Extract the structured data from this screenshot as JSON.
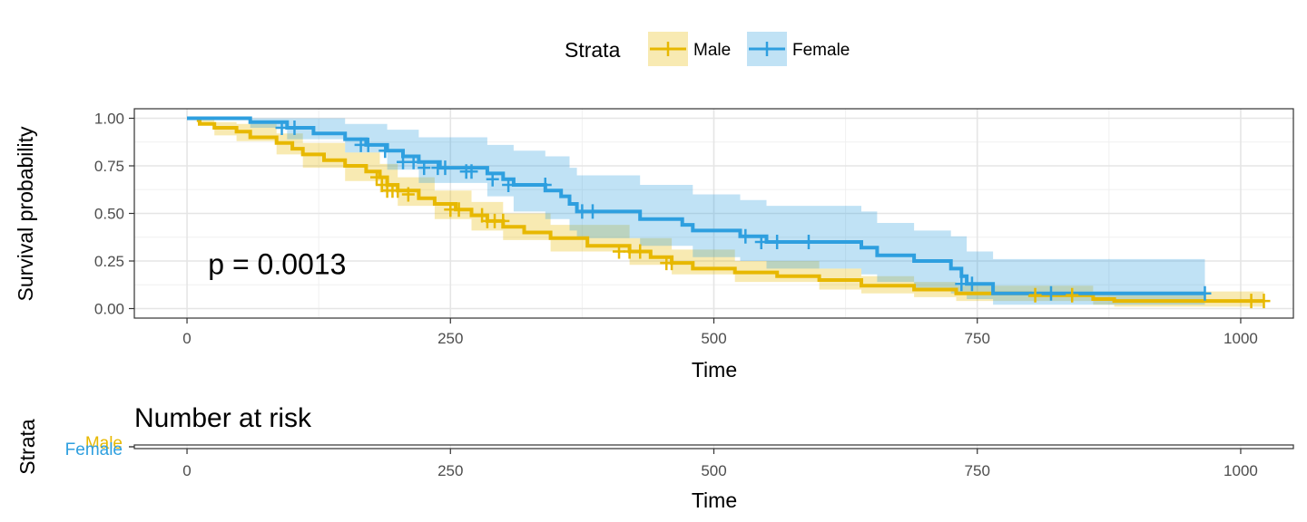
{
  "chart_data": [
    {
      "type": "line",
      "subtype": "kaplan-meier step curve with confidence bands and censor marks",
      "xlabel": "Time",
      "ylabel": "Survival probability",
      "xlim": [
        -50,
        1050
      ],
      "ylim": [
        -0.05,
        1.05
      ],
      "x_ticks": [
        0,
        250,
        500,
        750,
        1000
      ],
      "x_tick_labels": [
        "0",
        "250",
        "500",
        "750",
        "1000"
      ],
      "y_ticks": [
        0,
        0.25,
        0.5,
        0.75,
        1.0
      ],
      "y_tick_labels": [
        "0.00",
        "0.25",
        "0.50",
        "0.75",
        "1.00"
      ],
      "grid": true,
      "legend": {
        "title": "Strata",
        "position": "top",
        "entries": [
          "Male",
          "Female"
        ]
      },
      "annotation": {
        "text": "p = 0.0013",
        "x": 20,
        "y": 0.18
      },
      "series": [
        {
          "name": "Male",
          "color": "#E7B800",
          "steps": [
            [
              0,
              1.0
            ],
            [
              11,
              0.99
            ],
            [
              12,
              0.97
            ],
            [
              26,
              0.95
            ],
            [
              47,
              0.93
            ],
            [
              60,
              0.9
            ],
            [
              85,
              0.87
            ],
            [
              100,
              0.84
            ],
            [
              110,
              0.81
            ],
            [
              130,
              0.78
            ],
            [
              150,
              0.75
            ],
            [
              170,
              0.72
            ],
            [
              183,
              0.69
            ],
            [
              190,
              0.65
            ],
            [
              200,
              0.62
            ],
            [
              220,
              0.58
            ],
            [
              235,
              0.55
            ],
            [
              255,
              0.52
            ],
            [
              270,
              0.49
            ],
            [
              285,
              0.46
            ],
            [
              300,
              0.43
            ],
            [
              320,
              0.4
            ],
            [
              345,
              0.37
            ],
            [
              380,
              0.33
            ],
            [
              420,
              0.3
            ],
            [
              440,
              0.27
            ],
            [
              460,
              0.24
            ],
            [
              480,
              0.21
            ],
            [
              520,
              0.19
            ],
            [
              560,
              0.17
            ],
            [
              600,
              0.15
            ],
            [
              640,
              0.12
            ],
            [
              690,
              0.1
            ],
            [
              730,
              0.08
            ],
            [
              800,
              0.07
            ],
            [
              860,
              0.05
            ],
            [
              880,
              0.04
            ],
            [
              1022,
              0.04
            ]
          ],
          "ci_lower": [
            [
              0,
              1.0
            ],
            [
              11,
              0.97
            ],
            [
              26,
              0.91
            ],
            [
              47,
              0.88
            ],
            [
              85,
              0.81
            ],
            [
              110,
              0.74
            ],
            [
              150,
              0.67
            ],
            [
              183,
              0.61
            ],
            [
              200,
              0.54
            ],
            [
              235,
              0.47
            ],
            [
              270,
              0.41
            ],
            [
              300,
              0.36
            ],
            [
              345,
              0.3
            ],
            [
              420,
              0.23
            ],
            [
              460,
              0.18
            ],
            [
              520,
              0.14
            ],
            [
              600,
              0.1
            ],
            [
              640,
              0.08
            ],
            [
              690,
              0.06
            ],
            [
              730,
              0.04
            ],
            [
              860,
              0.02
            ],
            [
              880,
              0.01
            ],
            [
              1022,
              0.01
            ]
          ],
          "ci_upper": [
            [
              0,
              1.0
            ],
            [
              11,
              1.0
            ],
            [
              26,
              0.98
            ],
            [
              47,
              0.97
            ],
            [
              85,
              0.92
            ],
            [
              110,
              0.87
            ],
            [
              150,
              0.82
            ],
            [
              183,
              0.76
            ],
            [
              200,
              0.69
            ],
            [
              235,
              0.62
            ],
            [
              270,
              0.56
            ],
            [
              300,
              0.5
            ],
            [
              345,
              0.44
            ],
            [
              420,
              0.37
            ],
            [
              460,
              0.31
            ],
            [
              520,
              0.25
            ],
            [
              600,
              0.21
            ],
            [
              640,
              0.17
            ],
            [
              690,
              0.14
            ],
            [
              730,
              0.12
            ],
            [
              860,
              0.09
            ],
            [
              880,
              0.09
            ],
            [
              1022,
              0.09
            ]
          ],
          "censored": [
            [
              180,
              0.69
            ],
            [
              185,
              0.65
            ],
            [
              190,
              0.62
            ],
            [
              195,
              0.62
            ],
            [
              200,
              0.62
            ],
            [
              210,
              0.6
            ],
            [
              250,
              0.52
            ],
            [
              258,
              0.52
            ],
            [
              280,
              0.49
            ],
            [
              285,
              0.46
            ],
            [
              292,
              0.46
            ],
            [
              300,
              0.46
            ],
            [
              410,
              0.3
            ],
            [
              420,
              0.3
            ],
            [
              430,
              0.3
            ],
            [
              455,
              0.24
            ],
            [
              460,
              0.24
            ],
            [
              805,
              0.07
            ],
            [
              840,
              0.07
            ],
            [
              1010,
              0.04
            ],
            [
              1022,
              0.04
            ]
          ]
        },
        {
          "name": "Female",
          "color": "#2E9FDF",
          "steps": [
            [
              0,
              1.0
            ],
            [
              60,
              0.98
            ],
            [
              95,
              0.95
            ],
            [
              120,
              0.92
            ],
            [
              150,
              0.89
            ],
            [
              170,
              0.86
            ],
            [
              190,
              0.83
            ],
            [
              205,
              0.8
            ],
            [
              220,
              0.77
            ],
            [
              240,
              0.74
            ],
            [
              285,
              0.71
            ],
            [
              300,
              0.68
            ],
            [
              310,
              0.65
            ],
            [
              340,
              0.62
            ],
            [
              355,
              0.59
            ],
            [
              363,
              0.55
            ],
            [
              370,
              0.51
            ],
            [
              430,
              0.47
            ],
            [
              470,
              0.44
            ],
            [
              480,
              0.41
            ],
            [
              525,
              0.38
            ],
            [
              550,
              0.35
            ],
            [
              640,
              0.32
            ],
            [
              655,
              0.28
            ],
            [
              690,
              0.25
            ],
            [
              725,
              0.21
            ],
            [
              735,
              0.17
            ],
            [
              740,
              0.13
            ],
            [
              765,
              0.08
            ],
            [
              966,
              0.08
            ]
          ],
          "ci_lower": [
            [
              0,
              1.0
            ],
            [
              60,
              0.95
            ],
            [
              95,
              0.89
            ],
            [
              150,
              0.82
            ],
            [
              190,
              0.73
            ],
            [
              220,
              0.66
            ],
            [
              285,
              0.59
            ],
            [
              310,
              0.51
            ],
            [
              340,
              0.47
            ],
            [
              363,
              0.41
            ],
            [
              370,
              0.37
            ],
            [
              430,
              0.33
            ],
            [
              480,
              0.27
            ],
            [
              525,
              0.25
            ],
            [
              550,
              0.21
            ],
            [
              640,
              0.18
            ],
            [
              655,
              0.14
            ],
            [
              690,
              0.11
            ],
            [
              725,
              0.08
            ],
            [
              740,
              0.05
            ],
            [
              765,
              0.02
            ],
            [
              966,
              0.02
            ]
          ],
          "ci_upper": [
            [
              0,
              1.0
            ],
            [
              60,
              1.0
            ],
            [
              95,
              1.0
            ],
            [
              150,
              0.97
            ],
            [
              190,
              0.94
            ],
            [
              220,
              0.9
            ],
            [
              285,
              0.86
            ],
            [
              310,
              0.83
            ],
            [
              340,
              0.8
            ],
            [
              363,
              0.74
            ],
            [
              370,
              0.7
            ],
            [
              430,
              0.65
            ],
            [
              480,
              0.6
            ],
            [
              525,
              0.57
            ],
            [
              550,
              0.54
            ],
            [
              640,
              0.51
            ],
            [
              655,
              0.45
            ],
            [
              690,
              0.41
            ],
            [
              725,
              0.38
            ],
            [
              740,
              0.3
            ],
            [
              765,
              0.26
            ],
            [
              966,
              0.26
            ]
          ],
          "censored": [
            [
              90,
              0.95
            ],
            [
              102,
              0.95
            ],
            [
              165,
              0.86
            ],
            [
              172,
              0.86
            ],
            [
              188,
              0.83
            ],
            [
              205,
              0.77
            ],
            [
              215,
              0.77
            ],
            [
              225,
              0.74
            ],
            [
              238,
              0.74
            ],
            [
              245,
              0.74
            ],
            [
              265,
              0.72
            ],
            [
              270,
              0.72
            ],
            [
              290,
              0.68
            ],
            [
              305,
              0.65
            ],
            [
              340,
              0.65
            ],
            [
              375,
              0.51
            ],
            [
              385,
              0.51
            ],
            [
              530,
              0.38
            ],
            [
              545,
              0.35
            ],
            [
              560,
              0.35
            ],
            [
              590,
              0.35
            ],
            [
              735,
              0.13
            ],
            [
              745,
              0.13
            ],
            [
              820,
              0.08
            ],
            [
              966,
              0.08
            ]
          ]
        }
      ]
    },
    {
      "type": "table",
      "subtype": "number at risk",
      "title": "Number at risk",
      "xlabel": "Time",
      "ylabel": "Strata",
      "xlim": [
        -50,
        1050
      ],
      "x_ticks": [
        0,
        250,
        500,
        750,
        1000
      ],
      "x_tick_labels": [
        "0",
        "250",
        "500",
        "750",
        "1000"
      ],
      "rows": [
        {
          "name": "Male",
          "color": "#E7B800"
        },
        {
          "name": "Female",
          "color": "#2E9FDF"
        }
      ]
    }
  ]
}
